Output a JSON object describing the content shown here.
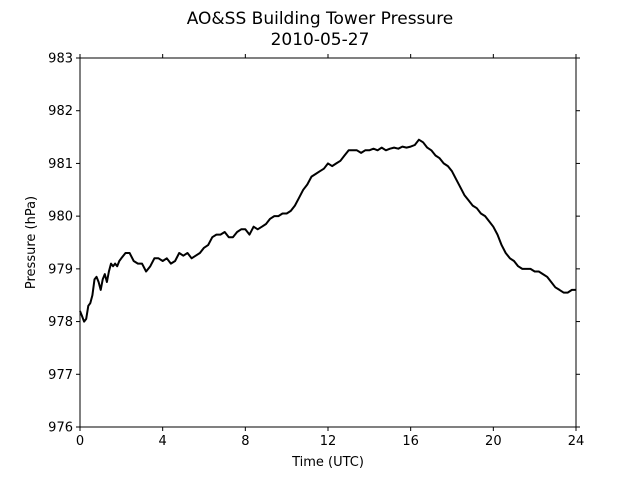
{
  "chart_data": {
    "type": "line",
    "title": "AO&SS Building Tower Pressure",
    "subtitle": "2010-05-27",
    "xlabel": "Time (UTC)",
    "ylabel": "Pressure (hPa)",
    "xlim": [
      0,
      24
    ],
    "ylim": [
      976,
      983
    ],
    "xticks": [
      0,
      4,
      8,
      12,
      16,
      20,
      24
    ],
    "yticks": [
      976,
      977,
      978,
      979,
      980,
      981,
      982,
      983
    ],
    "grid": false,
    "legend": "none",
    "line_color": "#000000",
    "series": [
      {
        "x": [
          0,
          0.1,
          0.2,
          0.3,
          0.4,
          0.5,
          0.6,
          0.7,
          0.8,
          0.9,
          1.0,
          1.1,
          1.2,
          1.3,
          1.4,
          1.5,
          1.6,
          1.7,
          1.8,
          1.9,
          2.0,
          2.2,
          2.4,
          2.6,
          2.8,
          3.0,
          3.2,
          3.4,
          3.6,
          3.8,
          4.0,
          4.2,
          4.4,
          4.6,
          4.8,
          5.0,
          5.2,
          5.4,
          5.6,
          5.8,
          6.0,
          6.2,
          6.4,
          6.6,
          6.8,
          7.0,
          7.2,
          7.4,
          7.6,
          7.8,
          8.0,
          8.2,
          8.4,
          8.6,
          8.8,
          9.0,
          9.2,
          9.4,
          9.6,
          9.8,
          10.0,
          10.2,
          10.4,
          10.6,
          10.8,
          11.0,
          11.2,
          11.4,
          11.6,
          11.8,
          12.0,
          12.2,
          12.4,
          12.6,
          12.8,
          13.0,
          13.2,
          13.4,
          13.6,
          13.8,
          14.0,
          14.2,
          14.4,
          14.6,
          14.8,
          15.0,
          15.2,
          15.4,
          15.6,
          15.8,
          16.0,
          16.2,
          16.4,
          16.6,
          16.8,
          17.0,
          17.2,
          17.4,
          17.6,
          17.8,
          18.0,
          18.2,
          18.4,
          18.6,
          18.8,
          19.0,
          19.2,
          19.4,
          19.6,
          19.8,
          20.0,
          20.2,
          20.4,
          20.6,
          20.8,
          21.0,
          21.2,
          21.4,
          21.6,
          21.8,
          22.0,
          22.2,
          22.4,
          22.6,
          22.8,
          23.0,
          23.2,
          23.4,
          23.6,
          23.8,
          24.0
        ],
        "values": [
          978.2,
          978.1,
          978.0,
          978.05,
          978.3,
          978.35,
          978.5,
          978.8,
          978.85,
          978.75,
          978.6,
          978.8,
          978.9,
          978.75,
          978.95,
          979.1,
          979.05,
          979.1,
          979.05,
          979.15,
          979.2,
          979.3,
          979.3,
          979.15,
          979.1,
          979.1,
          978.95,
          979.05,
          979.2,
          979.2,
          979.15,
          979.2,
          979.1,
          979.15,
          979.3,
          979.25,
          979.3,
          979.2,
          979.25,
          979.3,
          979.4,
          979.45,
          979.6,
          979.65,
          979.65,
          979.7,
          979.6,
          979.6,
          979.7,
          979.75,
          979.75,
          979.65,
          979.8,
          979.75,
          979.8,
          979.85,
          979.95,
          980.0,
          980.0,
          980.05,
          980.05,
          980.1,
          980.2,
          980.35,
          980.5,
          980.6,
          980.75,
          980.8,
          980.85,
          980.9,
          981.0,
          980.95,
          981.0,
          981.05,
          981.15,
          981.25,
          981.25,
          981.25,
          981.2,
          981.25,
          981.25,
          981.28,
          981.25,
          981.3,
          981.25,
          981.28,
          981.3,
          981.28,
          981.32,
          981.3,
          981.32,
          981.35,
          981.45,
          981.4,
          981.3,
          981.25,
          981.15,
          981.1,
          981.0,
          980.95,
          980.85,
          980.7,
          980.55,
          980.4,
          980.3,
          980.2,
          980.15,
          980.05,
          980.0,
          979.9,
          979.8,
          979.65,
          979.45,
          979.3,
          979.2,
          979.15,
          979.05,
          979.0,
          979.0,
          979.0,
          978.95,
          978.95,
          978.9,
          978.85,
          978.75,
          978.65,
          978.6,
          978.55,
          978.55,
          978.6,
          978.6
        ]
      }
    ]
  }
}
